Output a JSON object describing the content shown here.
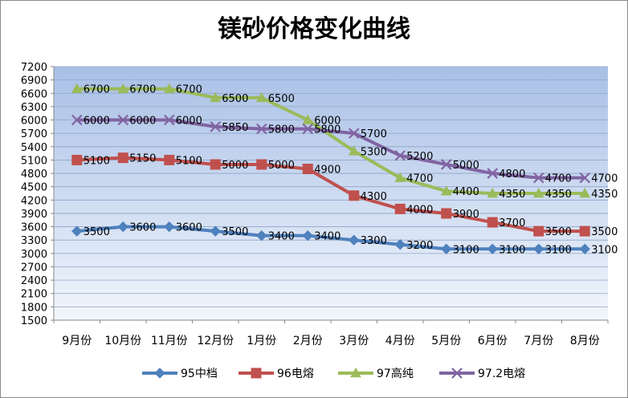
{
  "chart_data": {
    "type": "line",
    "title": "镁砂价格变化曲线",
    "xlabel": "",
    "ylabel": "",
    "categories": [
      "9月份",
      "10月份",
      "11月份",
      "12月份",
      "1月份",
      "2月份",
      "3月份",
      "4月份",
      "5月份",
      "6月份",
      "7月份",
      "8月份"
    ],
    "ylim": [
      1500,
      7200
    ],
    "yticks": [
      1500,
      1800,
      2100,
      2400,
      2700,
      3000,
      3300,
      3600,
      3900,
      4200,
      4500,
      4800,
      5100,
      5400,
      5700,
      6000,
      6300,
      6600,
      6900,
      7200
    ],
    "grid": true,
    "legend": "bottom",
    "series": [
      {
        "name": "95中档",
        "color": "#4f81bd",
        "marker": "diamond",
        "values": [
          3500,
          3600,
          3600,
          3500,
          3400,
          3400,
          3300,
          3200,
          3100,
          3100,
          3100,
          3100
        ]
      },
      {
        "name": "96电熔",
        "color": "#c0504d",
        "marker": "square",
        "values": [
          5100,
          5150,
          5100,
          5000,
          5000,
          4900,
          4300,
          4000,
          3900,
          3700,
          3500,
          3500
        ]
      },
      {
        "name": "97高纯",
        "color": "#9bbb59",
        "marker": "triangle",
        "values": [
          6700,
          6700,
          6700,
          6500,
          6500,
          6000,
          5300,
          4700,
          4400,
          4350,
          4350,
          4350
        ]
      },
      {
        "name": "97.2电熔",
        "color": "#8064a2",
        "marker": "x",
        "values": [
          6000,
          6000,
          6000,
          5850,
          5800,
          5800,
          5700,
          5200,
          5000,
          4800,
          4700,
          4700
        ]
      }
    ]
  }
}
